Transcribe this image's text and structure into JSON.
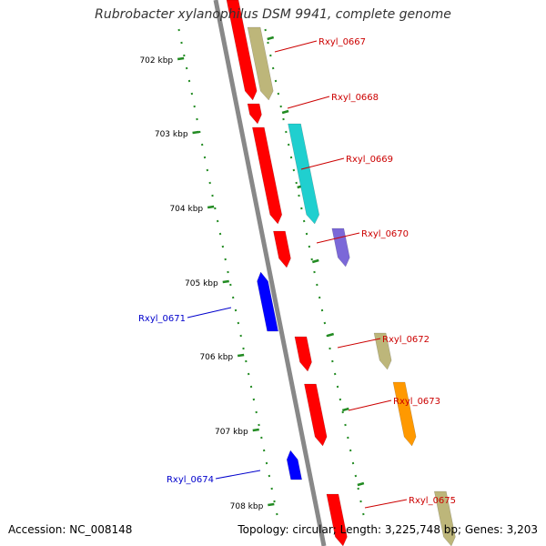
{
  "title": "Rubrobacter xylanophilus DSM 9941, complete genome",
  "accession": "Accession: NC_008148",
  "topology": "Topology: circular; Length: 3,225,748 bp; Genes: 3,203",
  "kbp_ticks": [
    "702 kbp",
    "703 kbp",
    "704 kbp",
    "705 kbp",
    "706 kbp",
    "707 kbp",
    "708 kbp"
  ],
  "colors": {
    "backbone": "#888888",
    "ticks": "#228B22",
    "cds": "#FF0000",
    "reverse_gene": "#0000FF",
    "label_red": "#CC0000",
    "label_blue": "#0000CC"
  },
  "genes": [
    {
      "name": "Rxyl_0667",
      "color": "#BDB67A"
    },
    {
      "name": "Rxyl_0668",
      "color": "#FF0000"
    },
    {
      "name": "Rxyl_0669",
      "color": "#20CFCF"
    },
    {
      "name": "Rxyl_0670",
      "color": "#7B68D8"
    },
    {
      "name": "Rxyl_0671",
      "color": "#0000FF"
    },
    {
      "name": "Rxyl_0672",
      "color": "#BDB67A"
    },
    {
      "name": "Rxyl_0673",
      "color": "#FF9900"
    },
    {
      "name": "Rxyl_0674",
      "color": "#0000FF"
    },
    {
      "name": "Rxyl_0675",
      "color": "#BDB67A"
    }
  ]
}
